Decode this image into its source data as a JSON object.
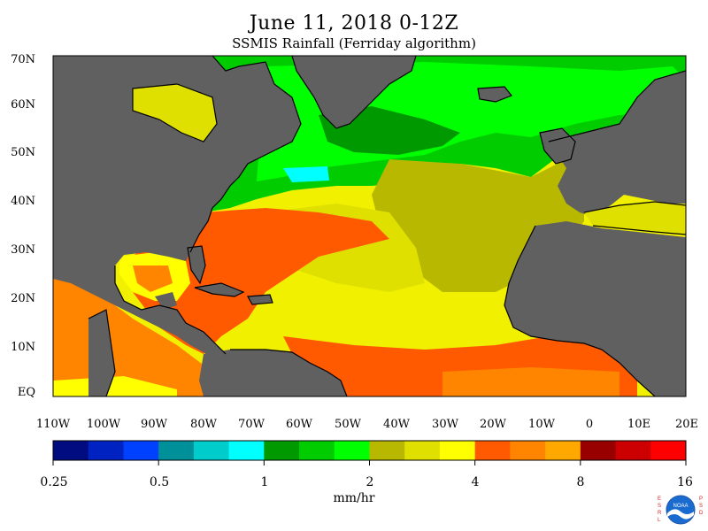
{
  "header": {
    "title": "June 11, 2018 0-12Z",
    "subtitle": "SSMIS Rainfall (Ferriday algorithm)"
  },
  "map": {
    "latitude_labels": [
      "70N",
      "60N",
      "50N",
      "40N",
      "30N",
      "20N",
      "10N",
      "EQ"
    ],
    "longitude_labels": [
      "110W",
      "100W",
      "90W",
      "80W",
      "70W",
      "60W",
      "50W",
      "40W",
      "30W",
      "20W",
      "10W",
      "0",
      "10E",
      "20E"
    ],
    "colors": {
      "land": "#606060",
      "ocean_background": "#f0f000",
      "coastline": "#000000"
    }
  },
  "colorbar": {
    "colors": [
      "#000c80",
      "#0022c0",
      "#0040ff",
      "#00909a",
      "#00cccc",
      "#00ffff",
      "#009a00",
      "#00cc00",
      "#00ff00",
      "#b8b800",
      "#e0e000",
      "#ffff00",
      "#ff5a00",
      "#ff8400",
      "#ffa800",
      "#980000",
      "#cc0000",
      "#ff0000"
    ],
    "tick_labels": [
      "0.25",
      "0.5",
      "1",
      "2",
      "4",
      "8",
      "16"
    ],
    "units": "mm/hr"
  },
  "logo": {
    "name": "noaa-logo",
    "left_letters": "ESRL",
    "right_letters": "PSD",
    "center_text": "NOAA"
  }
}
